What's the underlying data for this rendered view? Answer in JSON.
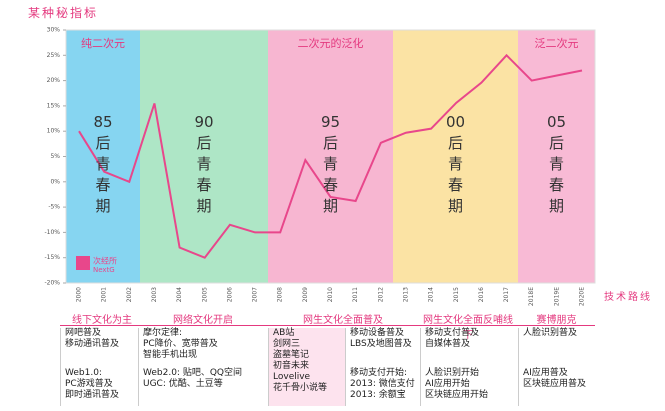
{
  "title": "某种秘指标",
  "chart_data": {
    "type": "line",
    "categories": [
      "2000",
      "2001",
      "2002",
      "2003",
      "2004",
      "2005",
      "2006",
      "2007",
      "2008",
      "2009",
      "2010",
      "2011",
      "2012",
      "2013",
      "2014",
      "2015",
      "2016",
      "2017",
      "2018E",
      "2019E",
      "2020E"
    ],
    "series": [
      {
        "color": "#e8478b",
        "values": [
          10,
          2,
          0,
          15.5,
          -13,
          -15,
          -8.5,
          -10,
          -10,
          4.3,
          -3,
          -3.8,
          7.7,
          9.7,
          10.5,
          15.6,
          19.6,
          25,
          20,
          21,
          22
        ]
      }
    ],
    "ylim": [
      -20,
      30
    ],
    "yticks": [
      {
        "value": -20,
        "label": "-20%"
      },
      {
        "value": -15,
        "label": "-15%"
      },
      {
        "value": -10,
        "label": "-10%"
      },
      {
        "value": -5,
        "label": "-5%"
      },
      {
        "value": 0,
        "label": "0%"
      },
      {
        "value": 5,
        "label": "5%"
      },
      {
        "value": 10,
        "label": "10%"
      },
      {
        "value": 15,
        "label": "15%"
      },
      {
        "value": 20,
        "label": "20%"
      },
      {
        "value": 25,
        "label": "25%"
      },
      {
        "value": 30,
        "label": "30%"
      }
    ],
    "grid": false,
    "bands": [
      {
        "label": "纯二次元",
        "color": "#86d5f1",
        "generation": "85",
        "phrase": "后青春期"
      },
      {
        "label": "",
        "color": "#aee6c6",
        "generation": "90",
        "phrase": "后青春期"
      },
      {
        "label": "二次元的泛化",
        "color": "#f7b6d1",
        "generation": "95",
        "phrase": "后青春期"
      },
      {
        "label": "",
        "color": "#fbe3a4",
        "generation": "00",
        "phrase": "后青春期"
      },
      {
        "label": "泛二次元",
        "color": "#f8bad5",
        "generation": "05",
        "phrase": "后青春期"
      }
    ],
    "logo": [
      "次经所",
      "NextG"
    ],
    "x_axis_note": "技术路线"
  },
  "table": {
    "headers": [
      "线下文化为主",
      "网络文化开启",
      "网生文化全面普及",
      "网生文化全面反哺线下",
      "赛博朋克"
    ],
    "columns": [
      [
        [
          "网吧普及",
          "移动通讯普及"
        ],
        [
          "Web1.0:",
          "PC游戏普及",
          "即时通讯普及"
        ]
      ],
      [
        [
          "摩尔定律:",
          "PC降价、宽带普及",
          "智能手机出现"
        ],
        [
          "Web2.0: 贴吧、QQ空间",
          "UGC: 优酷、土豆等"
        ]
      ],
      [
        [
          "AB站",
          "剑网三",
          "盗墓笔记",
          "初音未来",
          "Lovelive",
          "花千骨小说等"
        ]
      ],
      [
        [
          "移动设备普及",
          "LBS及地图普及"
        ],
        [
          "移动支付开始:",
          "2013: 微信支付",
          "2013: 余额宝"
        ]
      ],
      [
        [
          "移动支付普及",
          "自媒体普及"
        ],
        [
          "人脸识别开始",
          "AI应用开始",
          "区块链应用开始"
        ]
      ],
      [
        [
          "人脸识别普及"
        ],
        [
          "AI应用普及",
          "区块链应用普及"
        ]
      ]
    ]
  }
}
